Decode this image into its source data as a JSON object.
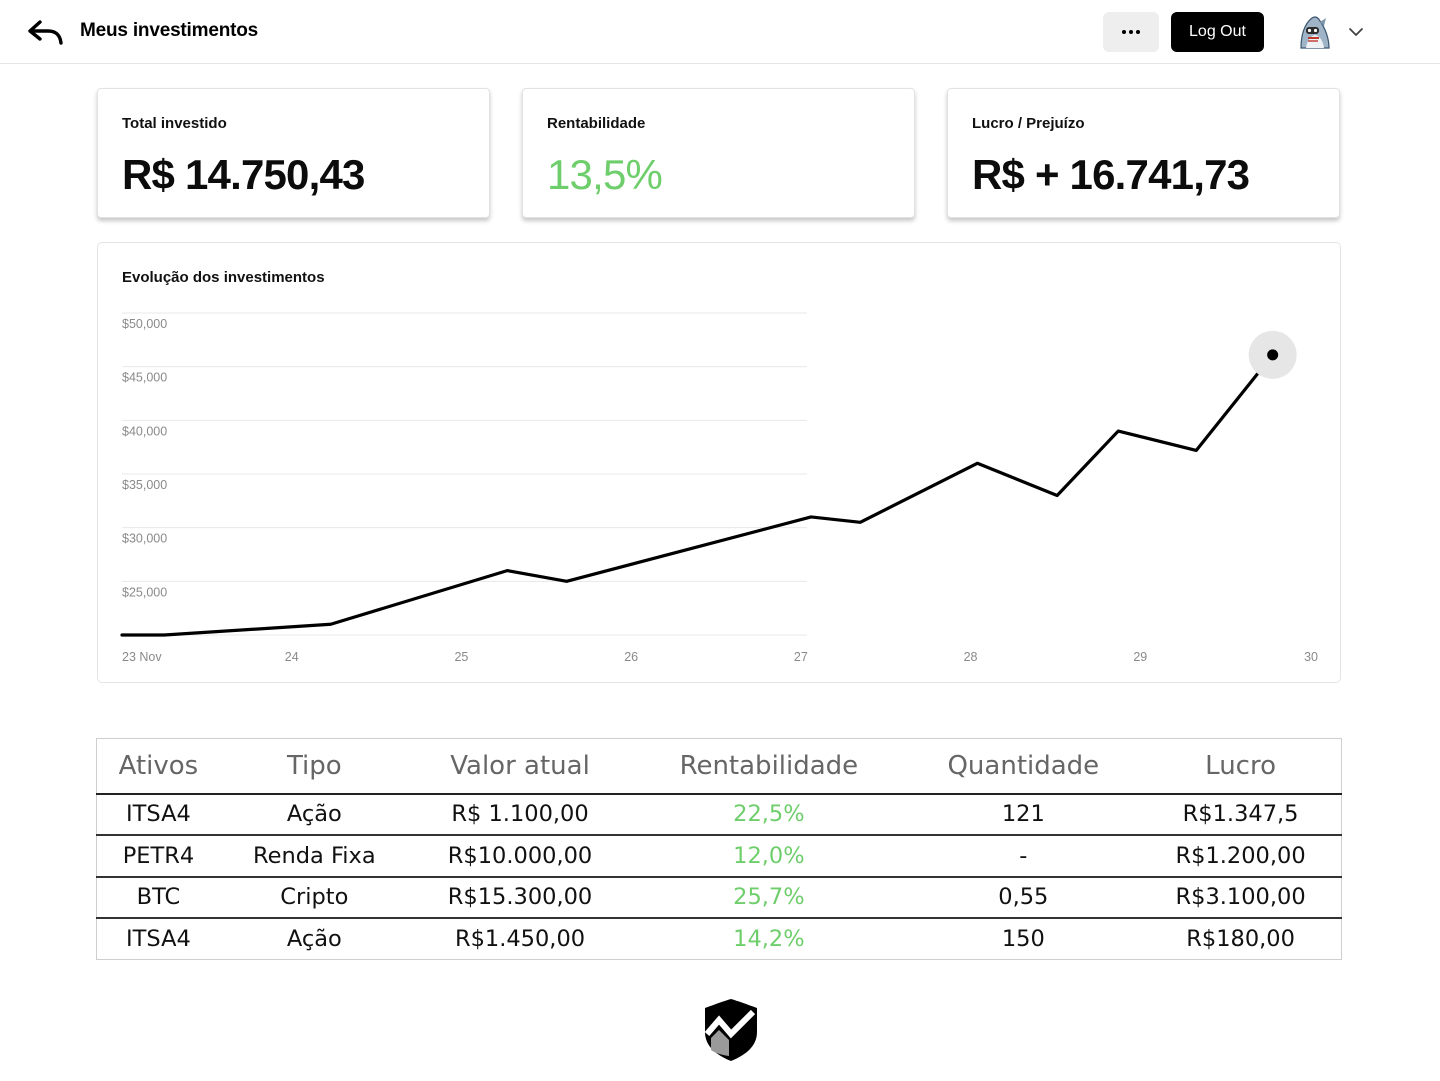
{
  "header": {
    "title": "Meus investimentos",
    "logout_label": "Log Out",
    "back_icon": "back-arrow-icon",
    "more_icon": "ellipsis-icon",
    "chevron_icon": "chevron-down-icon"
  },
  "stats": [
    {
      "label": "Total investido",
      "value": "R$ 14.750,43"
    },
    {
      "label": "Rentabilidade",
      "value": "13,5%",
      "color": "#6fce6c"
    },
    {
      "label": "Lucro / Prejuízo",
      "value": "R$ + 16.741,73"
    }
  ],
  "chart": {
    "title": "Evolução dos investimentos"
  },
  "chart_data": {
    "type": "line",
    "title": "Evolução dos investimentos",
    "xlabel": "",
    "ylabel": "",
    "x_ticks": [
      "23 Nov",
      "24",
      "25",
      "26",
      "27",
      "28",
      "29",
      "30"
    ],
    "y_ticks": [
      "$50,000",
      "$45,000",
      "$40,000",
      "$35,000",
      "$30,000",
      "$25,000"
    ],
    "ylim": [
      20000,
      50000
    ],
    "xlim": [
      23,
      30
    ],
    "grid": true,
    "x": [
      23.0,
      23.25,
      24.23,
      25.27,
      25.62,
      27.06,
      27.35,
      28.04,
      28.51,
      28.87,
      29.33,
      29.78
    ],
    "values": [
      20000,
      20000,
      21000,
      26000,
      25000,
      31000,
      30500,
      36000,
      33000,
      39000,
      37200,
      46100
    ],
    "series_color": "#000000",
    "highlight_last_point": true
  },
  "table": {
    "headers": [
      "Ativos",
      "Tipo",
      "Valor atual",
      "Rentabilidade",
      "Quantidade",
      "Lucro"
    ],
    "rows": [
      [
        "ITSA4",
        "Ação",
        "R$ 1.100,00",
        "22,5%",
        "121",
        "R$1.347,5"
      ],
      [
        "PETR4",
        "Renda Fixa",
        "R$10.000,00",
        "12,0%",
        "-",
        "R$1.200,00"
      ],
      [
        "BTC",
        "Cripto",
        "R$15.300,00",
        "25,7%",
        "0,55",
        "R$3.100,00"
      ],
      [
        "ITSA4",
        "Ação",
        "R$1.450,00",
        "14,2%",
        "150",
        "R$180,00"
      ]
    ],
    "positive_color": "#6fce6c"
  },
  "footer": {
    "logo_icon": "shield-chart-logo-icon"
  }
}
